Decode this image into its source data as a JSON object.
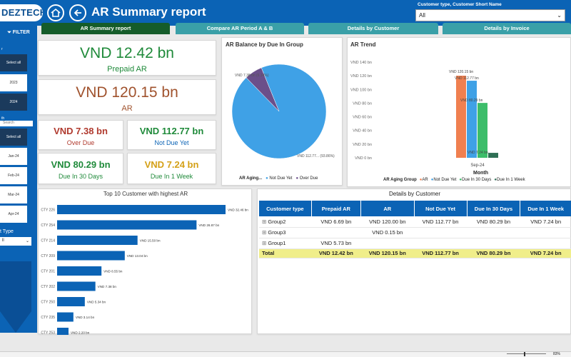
{
  "header": {
    "logo": "DEZTECH",
    "title": "AR Summary report",
    "slicer_label": "Customer type, Customer Short Name",
    "slicer_value": "All"
  },
  "tabs": [
    "AR Summary report",
    "Compare AR Period A & B",
    "Details by Customer",
    "Details by Invoice"
  ],
  "sidebar": {
    "filter": "FILTER",
    "year_label": "r",
    "select_all": "Select all",
    "years": [
      "2023",
      "2024"
    ],
    "month_label": "th",
    "search": "Search",
    "months": [
      "Jan-24",
      "Feb-24",
      "Mar-24",
      "Apr-24"
    ],
    "type_label": "t Type",
    "type_value": "ll"
  },
  "kpis": {
    "prepaid": {
      "value": "VND 12.42 bn",
      "label": "Prepaid AR"
    },
    "ar": {
      "value": "VND 120.15 bn",
      "label": "AR"
    },
    "overdue": {
      "value": "VND 7.38 bn",
      "label": "Over Due"
    },
    "notdue": {
      "value": "VND 112.77 bn",
      "label": "Not Due Yet"
    },
    "due30": {
      "value": "VND 80.29 bn",
      "label": "Due In 30 Days"
    },
    "due1w": {
      "value": "VND 7.24 bn",
      "label": "Due In 1 Week"
    }
  },
  "colors": {
    "blue": "#0b63b5",
    "green": "#1f8a3a",
    "brown": "#a0522d",
    "red": "#b03a2e",
    "gold": "#d4a017",
    "teal": "#3aa0a8",
    "pie_blue": "#3fa1e6",
    "pie_purple": "#6b4f8a",
    "orange": "#f08050",
    "lightblue": "#3fa1e6",
    "green2": "#3dbd6a",
    "darkgreen": "#2f6f55",
    "yellow": "#f0ee8a"
  },
  "pie": {
    "title": "AR Balance by Due In Group",
    "label_overdue": "VND 7.38 bn (6.14%)",
    "label_notdue": "VND 112.77... (93.86%)",
    "legend_title": "AR Aging...",
    "legend": [
      "Not Due Yet",
      "Over Due"
    ]
  },
  "trend": {
    "title": "AR Trend",
    "xlabel": "Month",
    "category": "Sep-24",
    "legend_title": "AR Aging Group",
    "legend": [
      "AR",
      "Not Due Yet",
      "Due In 30 Days",
      "Due In 1 Week"
    ],
    "ticks": [
      "VND 0 bn",
      "VND 20 bn",
      "VND 40 bn",
      "VND 60 bn",
      "VND 80 bn",
      "VND 100 bn",
      "VND 120 bn",
      "VND 140 bn"
    ],
    "labels": [
      "VND 120.15 bn",
      "VND 112.77 bn",
      "VND 80.29 bn",
      "VND 7.24 bn"
    ]
  },
  "top10": {
    "title": "Top 10 Customer with highest AR",
    "names": [
      "CTY 226",
      "CTY 254",
      "CTY 214",
      "CTY 209",
      "CTY 201",
      "CTY 202",
      "CTY 250",
      "CTY 235",
      "CTY 253"
    ],
    "labels": [
      "VND 32.46 bn",
      "VND 26.87 bn",
      "VND 15.50 bn",
      "VND 13.04 bn",
      "VND 8.55 bn",
      "VND 7.38 bn",
      "VND 5.34 bn",
      "VND 3.14 bn",
      "VND 2.20 bn"
    ]
  },
  "details": {
    "title": "Details by Customer",
    "headers": [
      "Customer type",
      "Prepaid AR",
      "AR",
      "Not Due Yet",
      "Due In 30 Days",
      "Due In 1 Week"
    ],
    "rows": [
      [
        "Group2",
        "VND 6.69 bn",
        "VND 120.00 bn",
        "VND 112.77 bn",
        "VND 80.29 bn",
        "VND 7.24 bn"
      ],
      [
        "Group3",
        "",
        "VND 0.15 bn",
        "",
        "",
        ""
      ],
      [
        "Group1",
        "VND 5.73 bn",
        "",
        "",
        "",
        ""
      ]
    ],
    "total": [
      "Total",
      "VND 12.42 bn",
      "VND 120.15 bn",
      "VND 112.77 bn",
      "VND 80.29 bn",
      "VND 7.24 bn"
    ]
  },
  "status": {
    "zoom": "83%"
  },
  "chart_data": [
    {
      "type": "pie",
      "title": "AR Balance by Due In Group",
      "categories": [
        "Not Due Yet",
        "Over Due"
      ],
      "values": [
        112.77,
        7.38
      ],
      "legend_title": "AR Aging..."
    },
    {
      "type": "bar",
      "title": "AR Trend",
      "categories": [
        "Sep-24"
      ],
      "series": [
        {
          "name": "AR",
          "values": [
            120.15
          ]
        },
        {
          "name": "Not Due Yet",
          "values": [
            112.77
          ]
        },
        {
          "name": "Due In 30 Days",
          "values": [
            80.29
          ]
        },
        {
          "name": "Due In 1 Week",
          "values": [
            7.24
          ]
        }
      ],
      "xlabel": "Month",
      "ylabel": "",
      "ylim": [
        0,
        140
      ]
    },
    {
      "type": "bar",
      "orientation": "horizontal",
      "title": "Top 10 Customer with highest AR",
      "categories": [
        "CTY 226",
        "CTY 254",
        "CTY 214",
        "CTY 209",
        "CTY 201",
        "CTY 202",
        "CTY 250",
        "CTY 235",
        "CTY 253"
      ],
      "values": [
        32.46,
        26.87,
        15.5,
        13.04,
        8.55,
        7.38,
        5.34,
        3.14,
        2.2
      ]
    }
  ]
}
